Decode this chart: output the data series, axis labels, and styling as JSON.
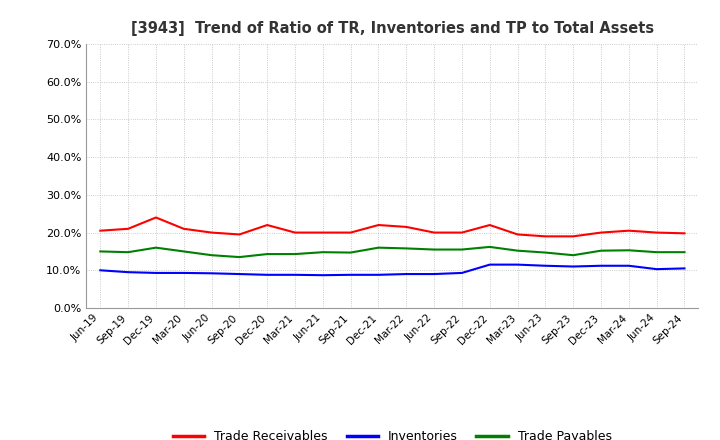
{
  "title": "[3943]  Trend of Ratio of TR, Inventories and TP to Total Assets",
  "x_labels": [
    "Jun-19",
    "Sep-19",
    "Dec-19",
    "Mar-20",
    "Jun-20",
    "Sep-20",
    "Dec-20",
    "Mar-21",
    "Jun-21",
    "Sep-21",
    "Dec-21",
    "Mar-22",
    "Jun-22",
    "Sep-22",
    "Dec-22",
    "Mar-23",
    "Jun-23",
    "Sep-23",
    "Dec-23",
    "Mar-24",
    "Jun-24",
    "Sep-24"
  ],
  "trade_receivables": [
    0.205,
    0.21,
    0.24,
    0.21,
    0.2,
    0.195,
    0.22,
    0.2,
    0.2,
    0.2,
    0.22,
    0.215,
    0.2,
    0.2,
    0.22,
    0.195,
    0.19,
    0.19,
    0.2,
    0.205,
    0.2,
    0.198
  ],
  "inventories": [
    0.1,
    0.095,
    0.093,
    0.093,
    0.092,
    0.09,
    0.088,
    0.088,
    0.087,
    0.088,
    0.088,
    0.09,
    0.09,
    0.093,
    0.115,
    0.115,
    0.112,
    0.11,
    0.112,
    0.112,
    0.103,
    0.105
  ],
  "trade_payables": [
    0.15,
    0.148,
    0.16,
    0.15,
    0.14,
    0.135,
    0.143,
    0.143,
    0.148,
    0.147,
    0.16,
    0.158,
    0.155,
    0.155,
    0.162,
    0.152,
    0.147,
    0.14,
    0.152,
    0.153,
    0.148,
    0.148
  ],
  "ylim": [
    0.0,
    0.7
  ],
  "yticks": [
    0.0,
    0.1,
    0.2,
    0.3,
    0.4,
    0.5,
    0.6,
    0.7
  ],
  "color_tr": "#FF0000",
  "color_inv": "#0000FF",
  "color_tp": "#008000",
  "background_color": "#FFFFFF",
  "grid_color": "#BBBBBB",
  "title_color": "#333333",
  "legend_labels": [
    "Trade Receivables",
    "Inventories",
    "Trade Payables"
  ]
}
